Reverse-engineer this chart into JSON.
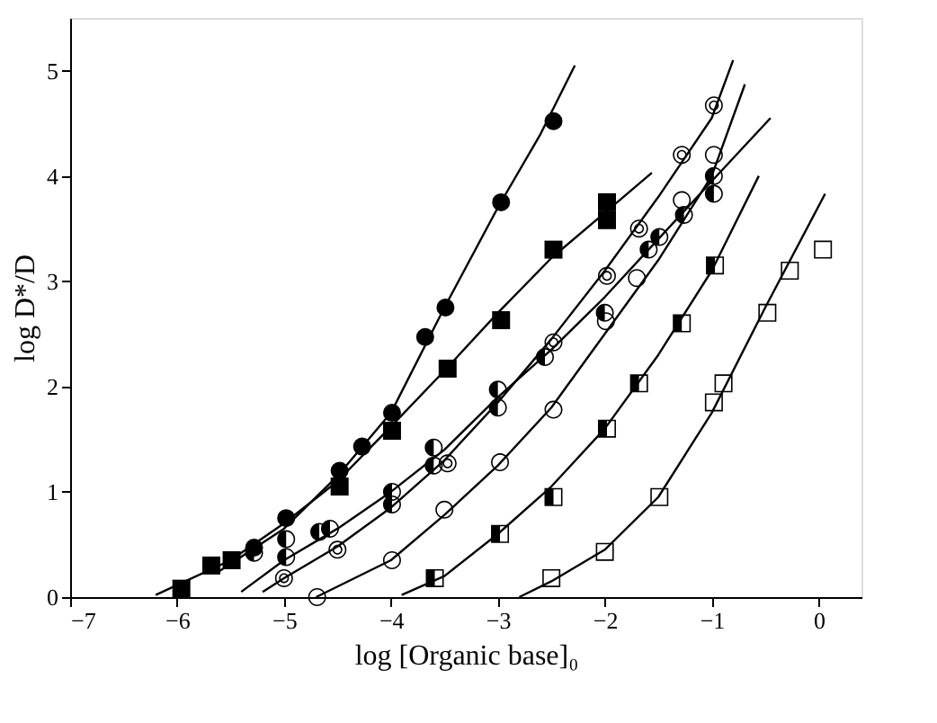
{
  "chart_data": {
    "type": "scatter",
    "xlabel": "log [Organic base]₀",
    "ylabel": "log D*/D",
    "xlim": [
      -7,
      0.4
    ],
    "ylim": [
      0,
      5.5
    ],
    "xticks": [
      -7,
      -6,
      -5,
      -4,
      -3,
      -2,
      -1,
      0
    ],
    "yticks": [
      0,
      1,
      2,
      3,
      4,
      5
    ],
    "grid": false,
    "series": [
      {
        "marker": "circle",
        "color": "#000000",
        "x": [
          -5.28,
          -4.98,
          -4.48,
          -4.27,
          -3.99,
          -3.68,
          -3.49,
          -2.97,
          -2.48
        ],
        "values": [
          0.47,
          0.75,
          1.2,
          1.43,
          1.75,
          2.47,
          2.75,
          3.75,
          4.52
        ]
      },
      {
        "marker": "square",
        "color": "#000000",
        "x": [
          -5.96,
          -5.68,
          -5.49,
          -4.48,
          -3.99,
          -3.47,
          -2.97,
          -2.48,
          -1.98,
          -1.98
        ],
        "values": [
          0.08,
          0.3,
          0.35,
          1.05,
          1.58,
          2.17,
          2.63,
          3.3,
          3.75,
          3.58
        ]
      },
      {
        "marker": "circle",
        "color": "#000000",
        "x": [
          -5.28,
          -4.98,
          -4.98,
          -4.67,
          -4.57,
          -3.99,
          -3.99,
          -3.6,
          -3.6,
          -3.0,
          -3.0,
          -2.56,
          -2.0,
          -1.59,
          -1.49,
          -1.26,
          -0.98,
          -0.98
        ],
        "values": [
          0.42,
          0.55,
          0.38,
          0.62,
          0.65,
          1.0,
          0.88,
          1.42,
          1.25,
          1.97,
          1.8,
          2.28,
          2.7,
          3.3,
          3.42,
          3.63,
          4.0,
          3.83
        ]
      },
      {
        "marker": "circle",
        "color": "#000000",
        "x": [
          -5.0,
          -4.5,
          -3.47,
          -2.48,
          -1.98,
          -1.68,
          -1.28,
          -0.98
        ],
        "values": [
          0.18,
          0.45,
          1.27,
          2.42,
          3.05,
          3.5,
          4.2,
          4.67
        ]
      },
      {
        "marker": "circle",
        "color": "#000000",
        "x": [
          -4.69,
          -3.99,
          -3.5,
          -2.98,
          -2.48,
          -1.99,
          -1.7,
          -1.28,
          -0.98
        ],
        "values": [
          0.0,
          0.35,
          0.83,
          1.28,
          1.78,
          2.62,
          3.03,
          3.77,
          4.2
        ]
      },
      {
        "marker": "square",
        "color": "#000000",
        "x": [
          -3.59,
          -2.98,
          -2.48,
          -1.98,
          -1.68,
          -1.28,
          -0.97
        ],
        "values": [
          0.18,
          0.6,
          0.95,
          1.6,
          2.03,
          2.6,
          3.15
        ]
      },
      {
        "marker": "square",
        "color": "#000000",
        "x": [
          -2.5,
          -2.0,
          -1.49,
          -0.98,
          -0.89,
          -0.48,
          -0.27,
          0.04
        ],
        "values": [
          0.18,
          0.43,
          0.95,
          1.85,
          2.03,
          2.7,
          3.1,
          3.3
        ]
      },
      {
        "type": "line",
        "color": "#000000",
        "x": [
          -5.6,
          -5.0,
          -4.5,
          -4.0,
          -3.5,
          -3.0,
          -2.6,
          -2.28
        ],
        "values": [
          0.25,
          0.65,
          1.15,
          1.75,
          2.75,
          3.7,
          4.4,
          5.05
        ]
      },
      {
        "type": "line",
        "color": "#000000",
        "x": [
          -6.2,
          -5.5,
          -5.0,
          -4.5,
          -4.0,
          -3.5,
          -3.0,
          -2.5,
          -2.0,
          -1.56
        ],
        "values": [
          0.02,
          0.35,
          0.7,
          1.1,
          1.62,
          2.15,
          2.7,
          3.22,
          3.65,
          4.03
        ]
      },
      {
        "type": "line",
        "color": "#000000",
        "x": [
          -5.4,
          -5.0,
          -4.5,
          -4.0,
          -3.5,
          -3.0,
          -2.5,
          -2.0,
          -1.5,
          -1.0,
          -0.45
        ],
        "values": [
          0.05,
          0.35,
          0.65,
          1.0,
          1.4,
          1.9,
          2.35,
          2.85,
          3.4,
          3.95,
          4.55
        ]
      },
      {
        "type": "line",
        "color": "#000000",
        "x": [
          -5.2,
          -5.0,
          -4.5,
          -4.0,
          -3.5,
          -3.0,
          -2.5,
          -2.0,
          -1.5,
          -1.0,
          -0.8
        ],
        "values": [
          0.05,
          0.18,
          0.48,
          0.85,
          1.3,
          1.85,
          2.45,
          3.1,
          3.8,
          4.55,
          5.1
        ]
      },
      {
        "type": "line",
        "color": "#000000",
        "x": [
          -4.7,
          -4.0,
          -3.5,
          -3.0,
          -2.5,
          -2.0,
          -1.5,
          -1.0,
          -0.69
        ],
        "values": [
          0.0,
          0.35,
          0.78,
          1.25,
          1.8,
          2.5,
          3.2,
          4.0,
          4.87
        ]
      },
      {
        "type": "line",
        "color": "#000000",
        "x": [
          -3.9,
          -3.5,
          -3.0,
          -2.5,
          -2.0,
          -1.5,
          -1.0,
          -0.56
        ],
        "values": [
          0.02,
          0.2,
          0.6,
          1.05,
          1.6,
          2.3,
          3.1,
          4.0
        ]
      },
      {
        "type": "line",
        "color": "#000000",
        "x": [
          -2.8,
          -2.5,
          -2.0,
          -1.5,
          -1.0,
          -0.5,
          0.06
        ],
        "values": [
          0.0,
          0.15,
          0.45,
          0.95,
          1.75,
          2.75,
          3.83
        ]
      }
    ]
  }
}
